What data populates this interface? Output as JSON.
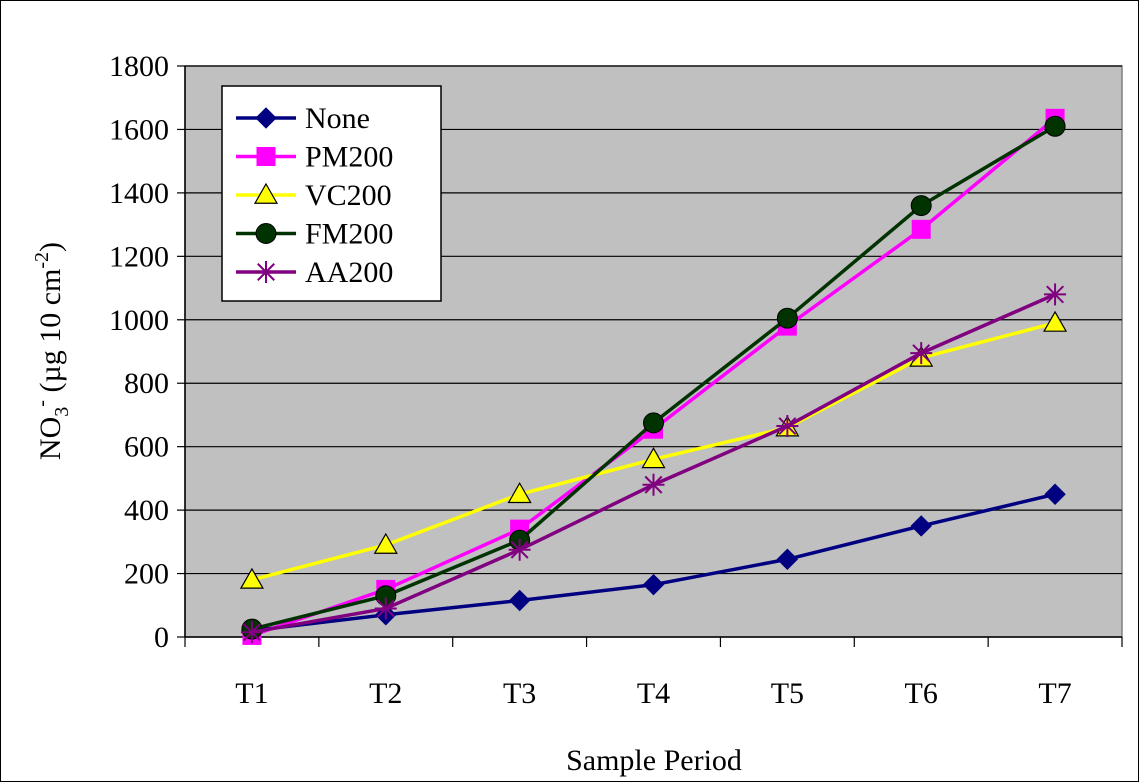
{
  "chart_data": {
    "type": "line",
    "title": "",
    "xlabel": "Sample Period",
    "ylabel_parts": [
      "NO",
      "3",
      "-",
      " (µg 10 cm",
      "-2",
      ")"
    ],
    "categories": [
      "T1",
      "T2",
      "T3",
      "T4",
      "T5",
      "T6",
      "T7"
    ],
    "ylim": [
      0,
      1800
    ],
    "yticks": [
      0,
      200,
      400,
      600,
      800,
      1000,
      1200,
      1400,
      1600,
      1800
    ],
    "grid": "horizontal",
    "plot_background": "#c0c0c0",
    "legend_position": "top-left",
    "series": [
      {
        "name": "None",
        "color": "#000080",
        "marker": "diamond",
        "values": [
          20,
          70,
          115,
          165,
          245,
          350,
          450
        ]
      },
      {
        "name": "PM200",
        "color": "#ff00ff",
        "marker": "square",
        "values": [
          5,
          150,
          340,
          655,
          980,
          1285,
          1635
        ]
      },
      {
        "name": "VC200",
        "color": "#ffff00",
        "marker": "triangle",
        "values": [
          180,
          290,
          450,
          560,
          660,
          880,
          990
        ]
      },
      {
        "name": "FM200",
        "color": "#003300",
        "marker": "circle",
        "values": [
          25,
          130,
          305,
          675,
          1005,
          1360,
          1610
        ]
      },
      {
        "name": "AA200",
        "color": "#800080",
        "marker": "asterisk",
        "values": [
          15,
          90,
          275,
          480,
          665,
          895,
          1080
        ]
      }
    ]
  }
}
